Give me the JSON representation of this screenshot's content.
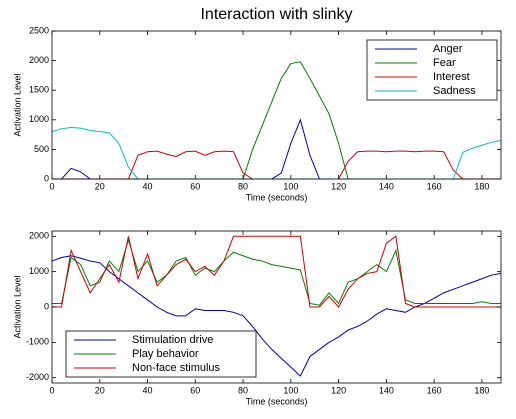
{
  "chart_data": [
    {
      "type": "line",
      "title": "Interaction with slinky",
      "xlabel": "Time (seconds)",
      "ylabel": "Activation Level",
      "x": [
        0,
        4,
        8,
        12,
        16,
        20,
        24,
        28,
        32,
        36,
        40,
        44,
        48,
        52,
        56,
        60,
        64,
        68,
        72,
        76,
        80,
        84,
        88,
        92,
        96,
        100,
        104,
        108,
        112,
        116,
        120,
        124,
        128,
        132,
        136,
        140,
        144,
        148,
        152,
        156,
        160,
        164,
        168,
        172,
        176,
        180,
        184,
        188
      ],
      "xlim": [
        0,
        188
      ],
      "xticks": [
        0,
        20,
        40,
        60,
        80,
        100,
        120,
        140,
        160,
        180
      ],
      "ylim": [
        0,
        2500
      ],
      "yticks": [
        0,
        500,
        1000,
        1500,
        2000,
        2500
      ],
      "legend": "upper right",
      "series": [
        {
          "name": "Anger",
          "color": "#0000b0",
          "values": [
            0,
            0,
            180,
            120,
            0,
            0,
            0,
            0,
            0,
            0,
            0,
            0,
            0,
            0,
            0,
            0,
            0,
            0,
            0,
            0,
            0,
            0,
            0,
            0,
            100,
            600,
            1000,
            400,
            0,
            0,
            0,
            0,
            0,
            0,
            0,
            0,
            0,
            0,
            0,
            0,
            0,
            0,
            0,
            0,
            0,
            0,
            0,
            0
          ]
        },
        {
          "name": "Fear",
          "color": "#008000",
          "values": [
            0,
            0,
            0,
            0,
            0,
            0,
            0,
            0,
            0,
            0,
            0,
            0,
            0,
            0,
            0,
            0,
            0,
            0,
            0,
            0,
            0,
            500,
            900,
            1300,
            1700,
            1950,
            1980,
            1700,
            1400,
            1100,
            600,
            0,
            0,
            0,
            0,
            0,
            0,
            0,
            0,
            0,
            0,
            0,
            0,
            0,
            0,
            0,
            0,
            0
          ]
        },
        {
          "name": "Interest",
          "color": "#d00000",
          "values": [
            0,
            0,
            0,
            0,
            0,
            0,
            0,
            0,
            0,
            400,
            460,
            470,
            420,
            380,
            460,
            470,
            400,
            460,
            470,
            460,
            100,
            0,
            0,
            0,
            0,
            0,
            0,
            0,
            0,
            0,
            0,
            300,
            460,
            470,
            470,
            460,
            470,
            470,
            460,
            470,
            470,
            460,
            150,
            0,
            0,
            0,
            0,
            0
          ]
        },
        {
          "name": "Sadness",
          "color": "#00bfbf",
          "values": [
            800,
            850,
            870,
            860,
            820,
            800,
            780,
            600,
            200,
            0,
            0,
            0,
            0,
            0,
            0,
            0,
            0,
            0,
            0,
            0,
            0,
            0,
            0,
            0,
            0,
            0,
            0,
            0,
            0,
            0,
            0,
            0,
            0,
            0,
            0,
            0,
            0,
            0,
            0,
            0,
            0,
            0,
            0,
            450,
            520,
            570,
            620,
            650
          ]
        }
      ]
    },
    {
      "type": "line",
      "xlabel": "Time (seconds)",
      "ylabel": "Activation Level",
      "x": [
        0,
        4,
        8,
        12,
        16,
        20,
        24,
        28,
        32,
        36,
        40,
        44,
        48,
        52,
        56,
        60,
        64,
        68,
        72,
        76,
        80,
        84,
        88,
        92,
        96,
        100,
        104,
        108,
        112,
        116,
        120,
        124,
        128,
        132,
        136,
        140,
        144,
        148,
        152,
        156,
        160,
        164,
        168,
        172,
        176,
        180,
        184,
        188
      ],
      "xlim": [
        0,
        188
      ],
      "xticks": [
        0,
        20,
        40,
        60,
        80,
        100,
        120,
        140,
        160,
        180
      ],
      "ylim": [
        -2150,
        2150
      ],
      "yticks": [
        -2000,
        -1000,
        0,
        1000,
        2000
      ],
      "legend": "lower left",
      "series": [
        {
          "name": "Stimulation drive",
          "color": "#0000b0",
          "values": [
            1300,
            1400,
            1450,
            1380,
            1300,
            1250,
            1000,
            800,
            600,
            400,
            200,
            0,
            -150,
            -250,
            -250,
            -50,
            -100,
            -100,
            -100,
            -150,
            -250,
            -550,
            -900,
            -1200,
            -1450,
            -1700,
            -1950,
            -1400,
            -1200,
            -1000,
            -850,
            -650,
            -550,
            -400,
            -200,
            -50,
            -100,
            -150,
            0,
            100,
            250,
            400,
            500,
            600,
            700,
            800,
            900,
            950
          ]
        },
        {
          "name": "Play behavior",
          "color": "#008000",
          "values": [
            100,
            100,
            1400,
            1200,
            600,
            700,
            1300,
            1000,
            1900,
            1000,
            1300,
            700,
            900,
            1300,
            1400,
            900,
            1100,
            1000,
            1300,
            1550,
            1450,
            1350,
            1300,
            1200,
            1150,
            1100,
            1050,
            100,
            50,
            400,
            100,
            700,
            800,
            1000,
            1200,
            1000,
            1600,
            200,
            100,
            100,
            100,
            100,
            100,
            100,
            100,
            150,
            100,
            100
          ]
        },
        {
          "name": "Non-face stimulus",
          "color": "#d00000",
          "values": [
            0,
            0,
            1600,
            1000,
            400,
            800,
            1200,
            700,
            2000,
            800,
            1500,
            600,
            900,
            1200,
            1350,
            1000,
            1150,
            900,
            1300,
            2000,
            2000,
            2000,
            2000,
            2000,
            2000,
            2000,
            2000,
            0,
            0,
            300,
            0,
            500,
            800,
            950,
            1000,
            1800,
            2000,
            100,
            0,
            0,
            0,
            0,
            0,
            0,
            0,
            0,
            0,
            0
          ]
        }
      ]
    }
  ]
}
